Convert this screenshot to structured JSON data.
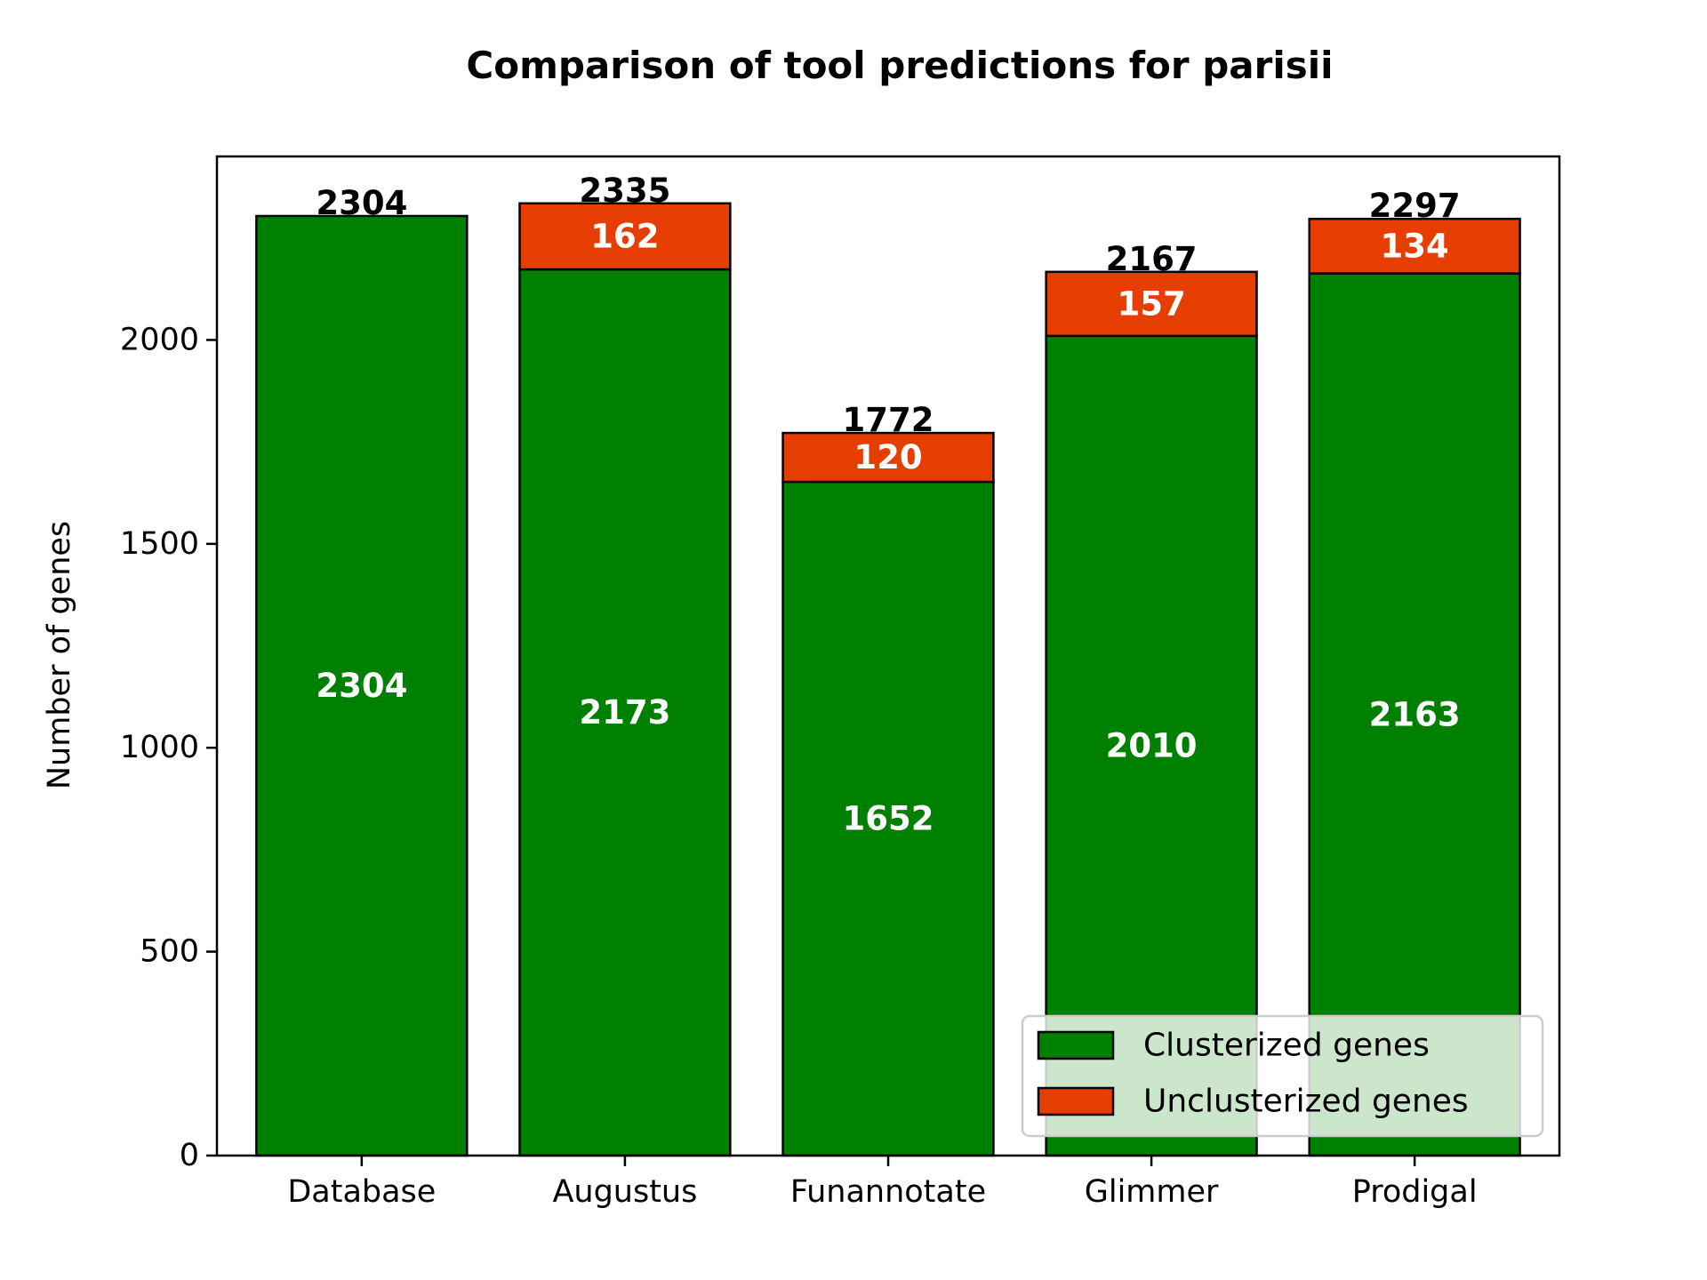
{
  "chart_data": {
    "type": "bar",
    "stacked": true,
    "title": "Comparison of tool predictions for parisii",
    "xlabel": "",
    "ylabel": "Number of genes",
    "ylim": [
      0,
      2450
    ],
    "yticks": [
      0,
      500,
      1000,
      1500,
      2000
    ],
    "categories": [
      "Database",
      "Augustus",
      "Funannotate",
      "Glimmer",
      "Prodigal"
    ],
    "series": [
      {
        "name": "Clusterized genes",
        "color": "#008000",
        "values": [
          2304,
          2173,
          1652,
          2010,
          2163
        ]
      },
      {
        "name": "Unclusterized genes",
        "color": "#e63e00",
        "values": [
          0,
          162,
          120,
          157,
          134
        ]
      }
    ],
    "totals": [
      2304,
      2335,
      1772,
      2167,
      2297
    ],
    "legend_position": "lower right",
    "grid": false
  }
}
